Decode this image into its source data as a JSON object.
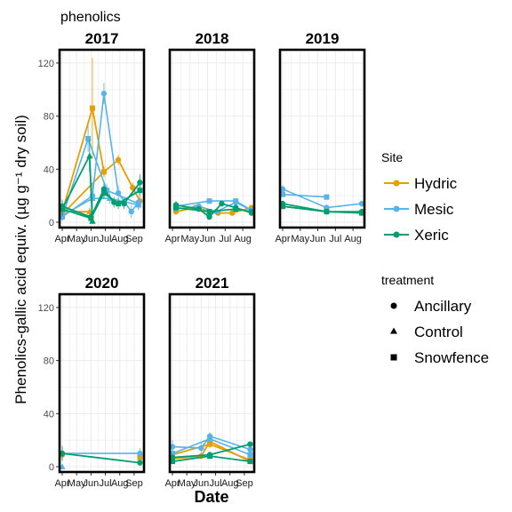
{
  "title": "phenolics",
  "xlabel": "Date",
  "ylabel": "Phenolics-gallic acid equiv. (µg g⁻¹ dry soil)",
  "colors": {
    "Hydric": "#E69F00",
    "Mesic": "#56B4E9",
    "Xeric": "#009E73"
  },
  "legend_site": {
    "title": "Site",
    "items": [
      {
        "label": "Hydric",
        "color": "#E69F00"
      },
      {
        "label": "Mesic",
        "color": "#56B4E9"
      },
      {
        "label": "Xeric",
        "color": "#009E73"
      }
    ]
  },
  "legend_treatment": {
    "title": "treatment",
    "items": [
      {
        "label": "Ancillary",
        "shape": "circle"
      },
      {
        "label": "Control",
        "shape": "triangle"
      },
      {
        "label": "Snowfence",
        "shape": "square"
      }
    ]
  },
  "chart_data": {
    "type": "line",
    "title": "phenolics",
    "xlabel": "Date",
    "ylabel": "Phenolics-gallic acid equiv. (µg g⁻¹ dry soil)",
    "y_ticks": [
      0,
      40,
      80,
      120
    ],
    "ylim": [
      -4,
      130
    ],
    "grid": true,
    "legend_position": "right",
    "panels": [
      {
        "label": "2017",
        "x_range": [
          0,
          5.5
        ],
        "x_ticks": [
          {
            "label": "Apr",
            "x": 0
          },
          {
            "label": "May",
            "x": 1
          },
          {
            "label": "Jun",
            "x": 2
          },
          {
            "label": "Jul",
            "x": 3
          },
          {
            "label": "Aug",
            "x": 4
          },
          {
            "label": "Sep",
            "x": 5
          }
        ],
        "series": [
          {
            "site": "Hydric",
            "treatment": "Ancillary",
            "points": [
              [
                0,
                6
              ],
              [
                2.9,
                38
              ],
              [
                3.9,
                47
              ],
              [
                4.9,
                26
              ],
              [
                5.4,
                16
              ]
            ],
            "err": [
              4,
              4,
              4,
              4,
              4
            ]
          },
          {
            "site": "Hydric",
            "treatment": "Control",
            "points": [
              [
                0,
                8
              ],
              [
                1.9,
                8
              ],
              [
                2.1,
                0.5
              ]
            ],
            "err": [
              3,
              3,
              2
            ]
          },
          {
            "site": "Hydric",
            "treatment": "Snowfence",
            "points": [
              [
                0,
                8
              ],
              [
                2.1,
                86
              ],
              [
                2.9,
                38
              ]
            ],
            "err": [
              3,
              38,
              4
            ]
          },
          {
            "site": "Mesic",
            "treatment": "Ancillary",
            "points": [
              [
                0,
                4
              ],
              [
                2.1,
                20
              ],
              [
                2.9,
                97
              ],
              [
                3.9,
                22
              ],
              [
                4.8,
                8
              ],
              [
                5.3,
                15
              ]
            ],
            "err": [
              3,
              10,
              8,
              5,
              5,
              5
            ]
          },
          {
            "site": "Mesic",
            "treatment": "Control",
            "points": [
              [
                0,
                5
              ],
              [
                2.1,
                18
              ],
              [
                3.3,
                18
              ],
              [
                5.3,
                13
              ]
            ],
            "err": [
              3,
              10,
              4,
              4
            ]
          },
          {
            "site": "Mesic",
            "treatment": "Snowfence",
            "points": [
              [
                0,
                4
              ],
              [
                1.8,
                63
              ],
              [
                3.1,
                24
              ],
              [
                5.3,
                14
              ]
            ],
            "err": [
              3,
              10,
              5,
              4
            ]
          },
          {
            "site": "Xeric",
            "treatment": "Ancillary",
            "points": [
              [
                0,
                12
              ],
              [
                2.0,
                4
              ],
              [
                2.9,
                25
              ],
              [
                3.6,
                15
              ],
              [
                4.3,
                14
              ],
              [
                5.4,
                30
              ]
            ],
            "err": [
              5,
              4,
              4,
              4,
              4,
              6
            ]
          },
          {
            "site": "Xeric",
            "treatment": "Control",
            "points": [
              [
                0,
                10
              ],
              [
                1.9,
                50
              ],
              [
                2.1,
                1
              ]
            ],
            "err": [
              5,
              12,
              2
            ]
          },
          {
            "site": "Xeric",
            "treatment": "Snowfence",
            "points": [
              [
                0,
                10
              ],
              [
                2.0,
                3
              ],
              [
                2.9,
                22
              ],
              [
                3.9,
                14
              ],
              [
                5.4,
                24
              ]
            ],
            "err": [
              5,
              3,
              4,
              4,
              4
            ]
          }
        ]
      },
      {
        "label": "2018",
        "x_range": [
          0,
          4.5
        ],
        "x_ticks": [
          {
            "label": "Apr",
            "x": 0
          },
          {
            "label": "May",
            "x": 1
          },
          {
            "label": "Jun",
            "x": 2
          },
          {
            "label": "Jul",
            "x": 3
          },
          {
            "label": "Aug",
            "x": 4
          }
        ],
        "series": [
          {
            "site": "Hydric",
            "treatment": "Ancillary",
            "points": [
              [
                0.2,
                8
              ],
              [
                1.3,
                11
              ],
              [
                2.6,
                7
              ],
              [
                3.4,
                7
              ],
              [
                4.5,
                11
              ]
            ],
            "err": [
              2,
              2,
              2,
              2,
              2
            ]
          },
          {
            "site": "Mesic",
            "treatment": "Ancillary",
            "points": [
              [
                0.2,
                10
              ],
              [
                1.5,
                12
              ],
              [
                2.5,
                8
              ],
              [
                3.6,
                15
              ],
              [
                4.5,
                9
              ]
            ],
            "err": [
              2,
              2,
              2,
              2,
              2
            ]
          },
          {
            "site": "Mesic",
            "treatment": "Snowfence",
            "points": [
              [
                0.2,
                12
              ],
              [
                2.1,
                16
              ],
              [
                3.6,
                16
              ],
              [
                4.5,
                9
              ]
            ],
            "err": [
              2,
              2,
              2,
              2
            ]
          },
          {
            "site": "Xeric",
            "treatment": "Ancillary",
            "points": [
              [
                0.2,
                13
              ],
              [
                1.5,
                10
              ],
              [
                2.1,
                4
              ],
              [
                2.8,
                14
              ],
              [
                3.6,
                11
              ],
              [
                4.5,
                7
              ]
            ],
            "err": [
              3,
              2,
              2,
              2,
              2,
              2
            ]
          },
          {
            "site": "Xeric",
            "treatment": "Snowfence",
            "points": [
              [
                0.2,
                11
              ],
              [
                2.1,
                8
              ],
              [
                3.6,
                10
              ],
              [
                4.5,
                8
              ]
            ],
            "err": [
              2,
              2,
              2,
              2
            ]
          }
        ]
      },
      {
        "label": "2019",
        "x_range": [
          0,
          4.5
        ],
        "x_ticks": [
          {
            "label": "Apr",
            "x": 0
          },
          {
            "label": "May",
            "x": 1
          },
          {
            "label": "Jun",
            "x": 2
          },
          {
            "label": "Jul",
            "x": 3
          },
          {
            "label": "Aug",
            "x": 4
          }
        ],
        "series": [
          {
            "site": "Hydric",
            "treatment": "Ancillary",
            "points": [
              [
                0,
                12
              ],
              [
                2.5,
                8
              ],
              [
                4.5,
                7
              ]
            ],
            "err": [
              2,
              2,
              2
            ]
          },
          {
            "site": "Mesic",
            "treatment": "Ancillary",
            "points": [
              [
                0,
                25
              ],
              [
                2.5,
                11
              ],
              [
                4.5,
                14
              ]
            ],
            "err": [
              3,
              2,
              2
            ]
          },
          {
            "site": "Mesic",
            "treatment": "Snowfence",
            "points": [
              [
                0,
                21
              ],
              [
                2.5,
                19
              ]
            ],
            "err": [
              2,
              2
            ]
          },
          {
            "site": "Xeric",
            "treatment": "Ancillary",
            "points": [
              [
                0,
                14
              ],
              [
                2.5,
                8
              ],
              [
                4.5,
                8
              ]
            ],
            "err": [
              2,
              2,
              2
            ]
          },
          {
            "site": "Xeric",
            "treatment": "Snowfence",
            "points": [
              [
                0,
                12
              ],
              [
                2.5,
                8
              ],
              [
                4.5,
                7
              ]
            ],
            "err": [
              2,
              2,
              2
            ]
          }
        ]
      },
      {
        "label": "2020",
        "x_range": [
          0,
          5.5
        ],
        "x_ticks": [
          {
            "label": "Apr",
            "x": 0
          },
          {
            "label": "May",
            "x": 1
          },
          {
            "label": "Jun",
            "x": 2
          },
          {
            "label": "Jul",
            "x": 3
          },
          {
            "label": "Aug",
            "x": 4
          },
          {
            "label": "Sep",
            "x": 5
          }
        ],
        "series": [
          {
            "site": "Hydric",
            "treatment": "Ancillary",
            "points": [
              [
                0,
                9
              ]
            ],
            "err": [
              4
            ]
          },
          {
            "site": "Hydric",
            "treatment": "Snowfence",
            "points": [
              [
                5.4,
                7
              ]
            ],
            "err": [
              3
            ]
          },
          {
            "site": "Mesic",
            "treatment": "Control",
            "points": [
              [
                0,
                0
              ]
            ],
            "err": [
              2
            ]
          },
          {
            "site": "Mesic",
            "treatment": "Ancillary",
            "points": [
              [
                0,
                10
              ],
              [
                5.4,
                10
              ]
            ],
            "err": [
              6,
              4
            ]
          },
          {
            "site": "Xeric",
            "treatment": "Ancillary",
            "points": [
              [
                0,
                10
              ],
              [
                5.4,
                3
              ]
            ],
            "err": [
              5,
              2
            ]
          }
        ]
      },
      {
        "label": "2021",
        "x_range": [
          0,
          5.5
        ],
        "x_ticks": [
          {
            "label": "Apr",
            "x": 0
          },
          {
            "label": "May",
            "x": 1
          },
          {
            "label": "Jun",
            "x": 2
          },
          {
            "label": "Jul",
            "x": 3
          },
          {
            "label": "Aug",
            "x": 4
          },
          {
            "label": "Sep",
            "x": 5
          }
        ],
        "series": [
          {
            "site": "Hydric",
            "treatment": "Ancillary",
            "points": [
              [
                0,
                6
              ],
              [
                2.0,
                8
              ],
              [
                2.6,
                19
              ],
              [
                5.4,
                4
              ]
            ],
            "err": [
              2,
              2,
              3,
              2
            ]
          },
          {
            "site": "Hydric",
            "treatment": "Snowfence",
            "points": [
              [
                0,
                9
              ],
              [
                2.6,
                17
              ],
              [
                5.4,
                5
              ]
            ],
            "err": [
              2,
              3,
              2
            ]
          },
          {
            "site": "Mesic",
            "treatment": "Ancillary",
            "points": [
              [
                0,
                15
              ],
              [
                2.0,
                14
              ],
              [
                2.6,
                23
              ],
              [
                5.4,
                13
              ]
            ],
            "err": [
              5,
              4,
              3,
              3
            ]
          },
          {
            "site": "Mesic",
            "treatment": "Snowfence",
            "points": [
              [
                0,
                10
              ],
              [
                2.6,
                21
              ],
              [
                5.4,
                9
              ]
            ],
            "err": [
              3,
              3,
              2
            ]
          },
          {
            "site": "Xeric",
            "treatment": "Ancillary",
            "points": [
              [
                0,
                7
              ],
              [
                2.6,
                9
              ],
              [
                5.4,
                17
              ]
            ],
            "err": [
              2,
              2,
              2
            ]
          },
          {
            "site": "Xeric",
            "treatment": "Snowfence",
            "points": [
              [
                0,
                4
              ],
              [
                2.6,
                8
              ],
              [
                5.4,
                4
              ]
            ],
            "err": [
              2,
              2,
              2
            ]
          }
        ]
      }
    ]
  }
}
